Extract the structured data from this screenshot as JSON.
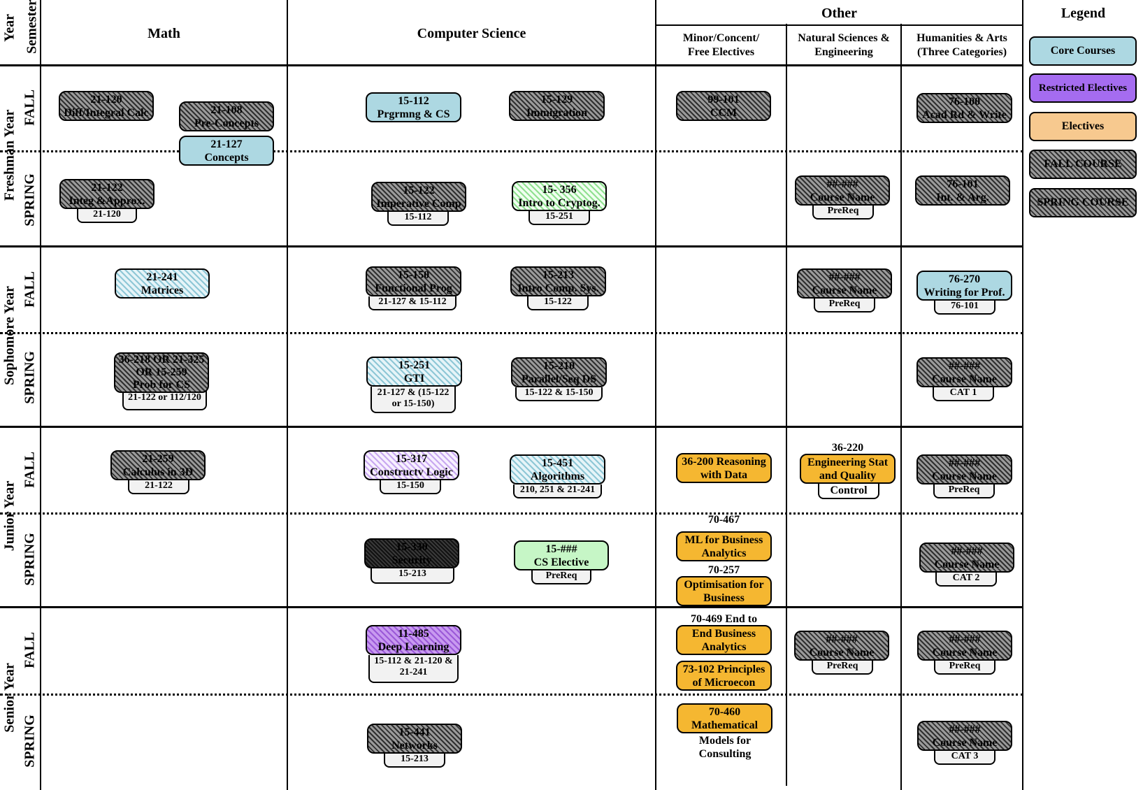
{
  "headers": {
    "year": "Year",
    "semester": "Semester",
    "math": "Math",
    "cs": "Computer Science",
    "other": "Other",
    "minor_l1": "Minor/Concent/",
    "minor_l2": "Free Electives",
    "nat_l1": "Natural Sciences &",
    "nat_l2": "Engineering",
    "hum_l1": "Humanities & Arts",
    "hum_l2": "(Three Categories)"
  },
  "years": {
    "freshman": "Freshman Year",
    "sophomore": "Sophomore Year",
    "junior": "Junior Year",
    "senior": "Senior Year"
  },
  "semesters": {
    "fall": "FALL",
    "spring": "SPRING"
  },
  "legend": {
    "title": "Legend",
    "core": "Core Courses",
    "restricted": "Restricted Electives",
    "electives": "Electives",
    "fall": "FALL COURSE",
    "spring": "SPRING COURSE"
  },
  "colors": {
    "core": "#add8e2",
    "restricted": "#a56cf0",
    "electives": "#f7c98f",
    "elective_course": "#f5b731",
    "cs_elective": "#c6f6c6"
  },
  "courses": {
    "f1_21120": {
      "l1": "21-120",
      "l2": "Diff/Integral Calc"
    },
    "f1_21108": {
      "l1": "21-108",
      "l2": "Pre-Concepts"
    },
    "f1_21127": {
      "l1": "21-127",
      "l2": "Concepts"
    },
    "f1_15112": {
      "l1": "15-112",
      "l2": "Prgrmng & CS"
    },
    "f1_15129": {
      "l1": "15-129",
      "l2": "Immigration"
    },
    "f1_99101": {
      "l1": "99-101",
      "l2": "CCM"
    },
    "f1_76100": {
      "l1": "76-100",
      "l2": "Acad Rd & Write"
    },
    "s1_21122": {
      "l1": "21-122",
      "l2": "Integ &Approx.",
      "pre": "21-120"
    },
    "s1_15122": {
      "l1": "15-122",
      "l2": "Imperative Comp",
      "pre": "15-112"
    },
    "s1_15356": {
      "l1": "15- 356",
      "l2": "Intro to Cryptog.",
      "pre": "15-251"
    },
    "s1_nat": {
      "l1": "##-###",
      "l2": "Course Name",
      "pre": "PreReq"
    },
    "s1_76101": {
      "l1": "76-101",
      "l2": "Int. & Arg."
    },
    "f2_21241": {
      "l1": "21-241",
      "l2": "Matrices"
    },
    "f2_15150": {
      "l1": "15-150",
      "l2": "Functional Prog",
      "pre": "21-127 & 15-112"
    },
    "f2_15213": {
      "l1": "15-213",
      "l2": "Intro Comp. Sys.",
      "pre": "15-122"
    },
    "f2_nat": {
      "l1": "##-###",
      "l2": "Course Name",
      "pre": "PreReq"
    },
    "f2_76270": {
      "l1": "76-270",
      "l2": "Writing for Prof.",
      "pre": "76-101"
    },
    "s2_36218": {
      "l1": "36-218 OR 21-325",
      "l2": "OR 15-259",
      "l3": "Prob for CS",
      "pre": "21-122 or 112/120"
    },
    "s2_15251": {
      "l1": "15-251",
      "l2": "GTI",
      "pre1": "21-127 & (15-122",
      "pre2": "or 15-150)"
    },
    "s2_15210": {
      "l1": "15-210",
      "l2": "Parallel/Seq DS",
      "pre": "15-122 & 15-150"
    },
    "s2_hum": {
      "l1": "##-###",
      "l2": "Course Name",
      "pre": "CAT 1"
    },
    "f3_21259": {
      "l1": "21-259",
      "l2": "Calculus in 3D",
      "pre": "21-122"
    },
    "f3_15317": {
      "l1": "15-317",
      "l2": "Constructv Logic",
      "pre": "15-150"
    },
    "f3_15451": {
      "l1": "15-451",
      "l2": "Algorithms",
      "pre": "210, 251 & 21-241"
    },
    "f3_36200": {
      "l1": "36-200 Reasoning",
      "l2": "with Data"
    },
    "f3_36220": {
      "top": "36-220",
      "l1": "Engineering Stat",
      "l2": "and Quality",
      "pre": "Control"
    },
    "f3_hum": {
      "l1": "##-###",
      "l2": "Course Name",
      "pre": "PreReq"
    },
    "s3_15330": {
      "l1": "15-330",
      "l2": "Security",
      "pre": "15-213"
    },
    "s3_15cs": {
      "l1": "15-###",
      "l2": "CS Elective",
      "pre": "PreReq"
    },
    "s3_70467": {
      "top": "70-467",
      "l1": "ML for Business",
      "l2": "Analytics"
    },
    "s3_70257": {
      "top": "70-257",
      "l1": "Optimisation for",
      "l2": "Business"
    },
    "s3_hum": {
      "l1": "##-###",
      "l2": "Course Name",
      "pre": "CAT 2"
    },
    "f4_11485": {
      "l1": "11-485",
      "l2": "Deep Learning",
      "pre1": "15-112 & 21-120 &",
      "pre2": "21-241"
    },
    "f4_70469": {
      "top": "70-469 End to",
      "l1": "End Business",
      "l2": "Analytics"
    },
    "f4_73102": {
      "l1": "73-102 Principles",
      "l2": "of Microecon"
    },
    "f4_nat": {
      "l1": "##-###",
      "l2": "Course Name",
      "pre": "PreReq"
    },
    "f4_hum": {
      "l1": "##-###",
      "l2": "Course Name",
      "pre": "PreReq"
    },
    "s4_15441": {
      "l1": "15-441",
      "l2": "Networks",
      "pre": "15-213"
    },
    "s4_70460": {
      "l1": "70-460",
      "l2": "Mathematical",
      "l3": "Models for",
      "l4": "Consulting"
    },
    "s4_hum": {
      "l1": "##-###",
      "l2": "Course Name",
      "pre": "CAT 3"
    }
  }
}
